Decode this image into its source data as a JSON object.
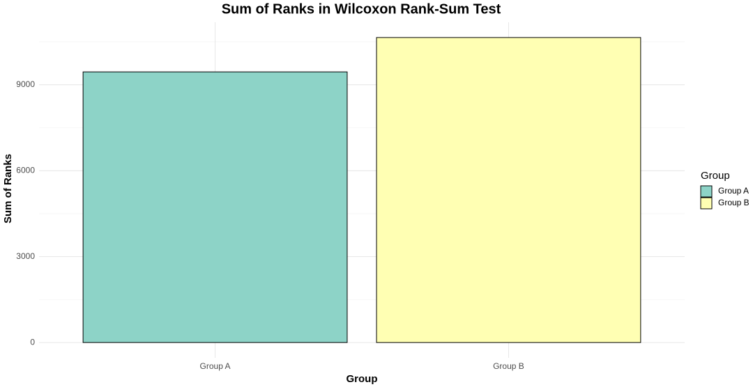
{
  "chart_data": {
    "type": "bar",
    "title": "Sum of Ranks in Wilcoxon Rank-Sum Test",
    "x_label": "Group",
    "y_label": "Sum of Ranks",
    "categories": [
      "Group A",
      "Group B"
    ],
    "values": [
      9450,
      10650
    ],
    "colors": [
      "#8DD3C7",
      "#FFFFB3"
    ],
    "legend_title": "Group",
    "legend_position": "right",
    "ylim": [
      -532.5,
      11182.5
    ],
    "yticks": [
      0,
      3000,
      6000,
      9000
    ],
    "y_minor_ticks": [
      1500,
      4500,
      7500,
      10500
    ],
    "grid": true
  }
}
